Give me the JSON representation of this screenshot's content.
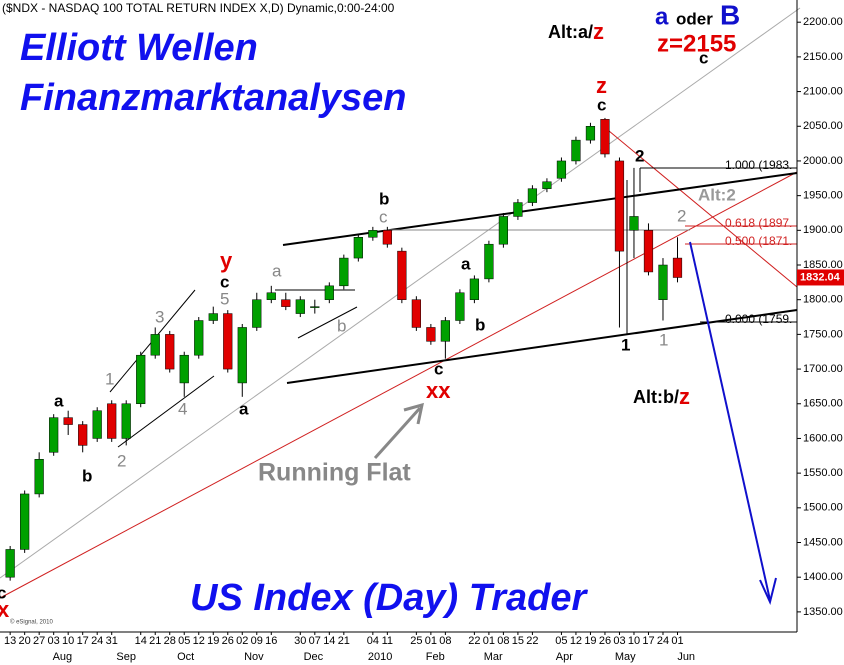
{
  "chart_data": {
    "type": "candlestick",
    "title": "($NDX - NASDAQ 100 TOTAL RETURN INDEX X,D) Dynamic,0:00-24:00",
    "x": [
      0,
      1,
      2,
      3,
      4,
      5,
      6,
      7,
      8,
      9,
      10,
      11,
      12,
      13,
      14,
      15,
      16,
      17,
      18,
      19,
      20,
      21,
      22,
      23,
      24,
      25,
      26,
      27,
      28,
      29,
      30,
      31,
      32,
      33,
      34,
      35,
      36,
      37,
      38,
      39,
      40,
      41,
      42,
      43,
      44,
      45,
      46
    ],
    "open": [
      1400,
      1440,
      1520,
      1580,
      1630,
      1620,
      1600,
      1650,
      1600,
      1650,
      1720,
      1750,
      1680,
      1720,
      1770,
      1780,
      1680,
      1760,
      1800,
      1800,
      1780,
      1790,
      1800,
      1820,
      1860,
      1890,
      1900,
      1870,
      1800,
      1760,
      1740,
      1770,
      1800,
      1830,
      1880,
      1920,
      1940,
      1960,
      1975,
      2000,
      2030,
      2060,
      2000,
      1900,
      1900,
      1800,
      1860
    ],
    "high": [
      1445,
      1525,
      1580,
      1635,
      1640,
      1625,
      1645,
      1655,
      1655,
      1725,
      1760,
      1755,
      1725,
      1775,
      1790,
      1785,
      1765,
      1810,
      1820,
      1810,
      1805,
      1800,
      1825,
      1865,
      1895,
      1905,
      1905,
      1875,
      1805,
      1765,
      1775,
      1815,
      1835,
      1885,
      1925,
      1945,
      1965,
      1975,
      2005,
      2035,
      2055,
      2062,
      2005,
      1990,
      1910,
      1860,
      1890
    ],
    "low": [
      1395,
      1435,
      1515,
      1575,
      1605,
      1580,
      1595,
      1595,
      1590,
      1645,
      1715,
      1695,
      1660,
      1715,
      1765,
      1695,
      1660,
      1755,
      1795,
      1785,
      1775,
      1780,
      1795,
      1815,
      1855,
      1885,
      1875,
      1795,
      1755,
      1735,
      1715,
      1765,
      1795,
      1825,
      1875,
      1915,
      1935,
      1955,
      1970,
      1995,
      2025,
      2005,
      1760,
      1860,
      1835,
      1770,
      1825
    ],
    "close": [
      1440,
      1520,
      1570,
      1630,
      1620,
      1590,
      1640,
      1600,
      1650,
      1720,
      1750,
      1700,
      1720,
      1770,
      1780,
      1700,
      1760,
      1800,
      1810,
      1790,
      1800,
      1790,
      1820,
      1860,
      1890,
      1900,
      1880,
      1800,
      1760,
      1740,
      1770,
      1810,
      1830,
      1880,
      1920,
      1940,
      1960,
      1970,
      2000,
      2030,
      2050,
      2010,
      1870,
      1920,
      1840,
      1850,
      1832
    ],
    "up_color": "#00a000",
    "down_color": "#e00000",
    "last_price": 1832.04,
    "xlim": [
      -0.7,
      54.1
    ],
    "ylim": [
      1321,
      2232
    ],
    "yticks": [
      {
        "value": 1350,
        "label": "1350.00"
      },
      {
        "value": 1400,
        "label": "1400.00"
      },
      {
        "value": 1450,
        "label": "1450.00"
      },
      {
        "value": 1500,
        "label": "1500.00"
      },
      {
        "value": 1550,
        "label": "1550.00"
      },
      {
        "value": 1600,
        "label": "1600.00"
      },
      {
        "value": 1650,
        "label": "1650.00"
      },
      {
        "value": 1700,
        "label": "1700.00"
      },
      {
        "value": 1750,
        "label": "1750.00"
      },
      {
        "value": 1800,
        "label": "1800.00"
      },
      {
        "value": 1850,
        "label": "1850.00"
      },
      {
        "value": 1900,
        "label": "1900.00"
      },
      {
        "value": 1950,
        "label": "1950.00"
      },
      {
        "value": 2000,
        "label": "2000.00"
      },
      {
        "value": 2050,
        "label": "2050.00"
      },
      {
        "value": 2100,
        "label": "2100.00"
      },
      {
        "value": 2150,
        "label": "2150.00"
      },
      {
        "value": 2200,
        "label": "2200.00"
      }
    ],
    "xticks": [
      {
        "value": 0,
        "label": "13"
      },
      {
        "value": 1,
        "label": "20"
      },
      {
        "value": 2,
        "label": "27"
      },
      {
        "value": 3,
        "label": "03"
      },
      {
        "value": 4,
        "label": "10"
      },
      {
        "value": 5,
        "label": "17"
      },
      {
        "value": 6,
        "label": "24"
      },
      {
        "value": 7,
        "label": "31"
      },
      {
        "value": 9,
        "label": "14"
      },
      {
        "value": 10,
        "label": "21"
      },
      {
        "value": 11,
        "label": "28"
      },
      {
        "value": 12,
        "label": "05"
      },
      {
        "value": 13,
        "label": "12"
      },
      {
        "value": 14,
        "label": "19"
      },
      {
        "value": 15,
        "label": "26"
      },
      {
        "value": 16,
        "label": "02"
      },
      {
        "value": 17,
        "label": "09"
      },
      {
        "value": 18,
        "label": "16"
      },
      {
        "value": 20,
        "label": "30"
      },
      {
        "value": 21,
        "label": "07"
      },
      {
        "value": 22,
        "label": "14"
      },
      {
        "value": 23,
        "label": "21"
      },
      {
        "value": 25,
        "label": "04"
      },
      {
        "value": 26,
        "label": "11"
      },
      {
        "value": 28,
        "label": "25"
      },
      {
        "value": 29,
        "label": "01"
      },
      {
        "value": 30,
        "label": "08"
      },
      {
        "value": 32,
        "label": "22"
      },
      {
        "value": 33,
        "label": "01"
      },
      {
        "value": 34,
        "label": "08"
      },
      {
        "value": 35,
        "label": "15"
      },
      {
        "value": 36,
        "label": "22"
      },
      {
        "value": 38,
        "label": "05"
      },
      {
        "value": 39,
        "label": "12"
      },
      {
        "value": 40,
        "label": "19"
      },
      {
        "value": 41,
        "label": "26"
      },
      {
        "value": 42,
        "label": "03"
      },
      {
        "value": 43,
        "label": "10"
      },
      {
        "value": 44,
        "label": "17"
      },
      {
        "value": 45,
        "label": "24"
      },
      {
        "value": 46,
        "label": "01"
      }
    ],
    "month_ticks": [
      {
        "value": 3.6,
        "label": "Aug"
      },
      {
        "value": 8,
        "label": "Sep"
      },
      {
        "value": 12.1,
        "label": "Oct"
      },
      {
        "value": 16.8,
        "label": "Nov"
      },
      {
        "value": 20.9,
        "label": "Dec"
      },
      {
        "value": 25.5,
        "label": "2010"
      },
      {
        "value": 29.3,
        "label": "Feb"
      },
      {
        "value": 33.3,
        "label": "Mar"
      },
      {
        "value": 38.2,
        "label": "Apr"
      },
      {
        "value": 42.4,
        "label": "May"
      },
      {
        "value": 46.6,
        "label": "Jun"
      }
    ],
    "headline": {
      "line1": "Elliott Wellen",
      "line2": "Finanzmarktanalysen",
      "footer": "US Index (Day) Trader"
    },
    "running_flat": "Running Flat",
    "copyright": "© eSignal, 2010",
    "fib_labels": [
      "1.000 (1983.",
      "0.618 (1897.",
      "0.500 (1871.",
      "0.000 (1759."
    ],
    "alt_labels": {
      "alt_a": "Alt:a/",
      "alt_a_z": "z",
      "alt_2": "Alt:2",
      "alt_b": "Alt:b/",
      "alt_b_z": "z"
    },
    "corner_labels": {
      "a": "a",
      "oder": "oder",
      "B": "B",
      "target": "z=2155",
      "c": "c"
    },
    "wave_labels": [
      "c",
      "x",
      "a",
      "b",
      "1",
      "2",
      "3",
      "4",
      "5",
      "c",
      "y",
      "a",
      "a",
      "b",
      "b",
      "c",
      "c",
      "xx",
      "a",
      "b",
      "z",
      "c",
      "2",
      "2",
      "1",
      "1"
    ]
  }
}
